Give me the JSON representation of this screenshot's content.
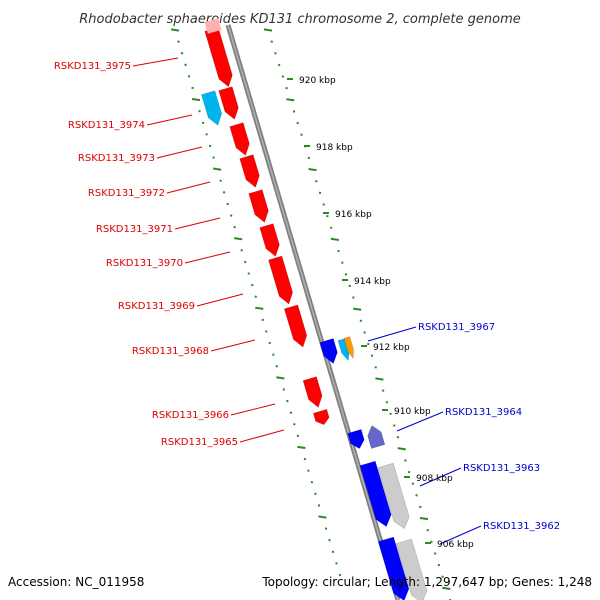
{
  "title": "Rhodobacter sphaeroides KD131 chromosome 2, complete genome",
  "footer": {
    "accession": "Accession: NC_011958",
    "summary": "Topology: circular; Length: 1,297,647 bp; Genes: 1,248"
  },
  "colors": {
    "forward_gene": "#ff0000",
    "reverse_gene": "#0000ff",
    "forward_label": "#dd0000",
    "reverse_label": "#0000cc",
    "ticks": "#2a8a2a",
    "backbone": "#808080"
  },
  "scale": {
    "ticks": [
      {
        "label": "920 kbp"
      },
      {
        "label": "918 kbp"
      },
      {
        "label": "916 kbp"
      },
      {
        "label": "914 kbp"
      },
      {
        "label": "912 kbp"
      },
      {
        "label": "910 kbp"
      },
      {
        "label": "908 kbp"
      },
      {
        "label": "906 kbp"
      }
    ]
  },
  "genes_forward": [
    {
      "label": "RSKD131_3975"
    },
    {
      "label": "RSKD131_3974"
    },
    {
      "label": "RSKD131_3973"
    },
    {
      "label": "RSKD131_3972"
    },
    {
      "label": "RSKD131_3971"
    },
    {
      "label": "RSKD131_3970"
    },
    {
      "label": "RSKD131_3969"
    },
    {
      "label": "RSKD131_3968"
    },
    {
      "label": "RSKD131_3966"
    },
    {
      "label": "RSKD131_3965"
    }
  ],
  "genes_reverse": [
    {
      "label": "RSKD131_3967"
    },
    {
      "label": "RSKD131_3964"
    },
    {
      "label": "RSKD131_3963"
    },
    {
      "label": "RSKD131_3962"
    }
  ]
}
